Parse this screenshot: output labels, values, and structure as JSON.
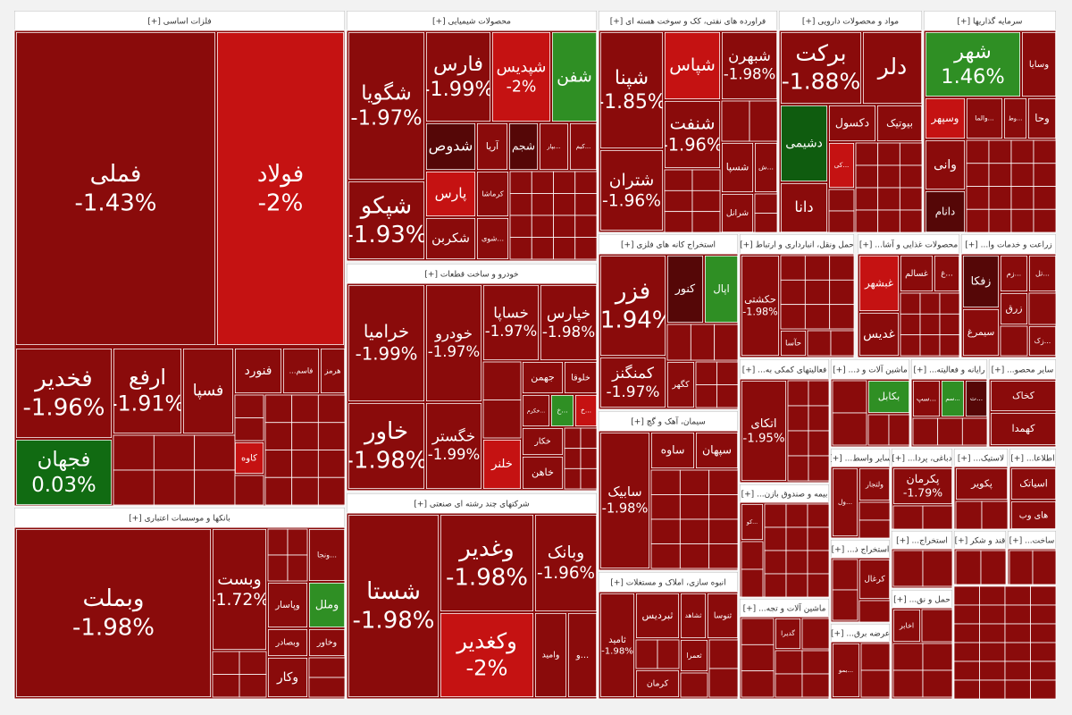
{
  "sectors": [
    {
      "title": "فلزات اساسی [+]",
      "tiles": [
        {
          "name": "فملی",
          "change": "-1.43%",
          "color": "#8a0b0b"
        },
        {
          "name": "فولاد",
          "change": "-2%",
          "color": "#c51212"
        },
        {
          "name": "فخدیر",
          "change": "-1.96%",
          "color": "#8a0b0b"
        },
        {
          "name": "فجهان",
          "change": "0.03%",
          "color": "#116b12"
        },
        {
          "name": "ارفع",
          "change": "-1.91%",
          "color": "#8a0b0b"
        },
        {
          "name": "فسپا",
          "color": "#8a0b0b"
        },
        {
          "name": "فنورد",
          "color": "#8a0b0b"
        },
        {
          "name": "فاسم...",
          "color": "#8a0b0b"
        },
        {
          "name": "هرمز",
          "color": "#8a0b0b"
        },
        {
          "name": "کاوه",
          "color": "#c51212"
        }
      ]
    },
    {
      "title": "بانکها و موسسات اعتباری [+]",
      "tiles": [
        {
          "name": "وبملت",
          "change": "-1.98%",
          "color": "#8a0b0b"
        },
        {
          "name": "وبست",
          "change": "-1.72%",
          "color": "#8a0b0b"
        },
        {
          "name": "...ونجا",
          "color": "#8a0b0b"
        },
        {
          "name": "وپاسار",
          "color": "#8a0b0b"
        },
        {
          "name": "وملل",
          "color": "#2f8f24"
        },
        {
          "name": "وبصادر",
          "color": "#8a0b0b"
        },
        {
          "name": "وخاور",
          "color": "#8a0b0b"
        },
        {
          "name": "وکار",
          "color": "#8a0b0b"
        }
      ]
    },
    {
      "title": "محصولات شیمیایی [+]",
      "tiles": [
        {
          "name": "شگویا",
          "change": "-1.97%",
          "color": "#8a0b0b"
        },
        {
          "name": "شپکو",
          "change": "-1.93%",
          "color": "#8a0b0b"
        },
        {
          "name": "فارس",
          "change": "-1.99%",
          "color": "#8a0b0b"
        },
        {
          "name": "شپدیس",
          "change": "-2%",
          "color": "#c51212"
        },
        {
          "name": "شفن",
          "color": "#2f8f24"
        },
        {
          "name": "شدوص",
          "color": "#550707"
        },
        {
          "name": "آریا",
          "color": "#8a0b0b"
        },
        {
          "name": "شجم",
          "color": "#550707"
        },
        {
          "name": "...بپار",
          "color": "#8a0b0b"
        },
        {
          "name": "...کیم",
          "color": "#8a0b0b"
        },
        {
          "name": "پارس",
          "color": "#c51212"
        },
        {
          "name": "کرماشا",
          "color": "#8a0b0b"
        },
        {
          "name": "شکربن",
          "color": "#8a0b0b"
        },
        {
          "name": "...شوی",
          "color": "#8a0b0b"
        }
      ]
    },
    {
      "title": "خودرو و ساخت قطعات [+]",
      "tiles": [
        {
          "name": "خرامیا",
          "change": "-1.99%",
          "color": "#8a0b0b"
        },
        {
          "name": "خاور",
          "change": "-1.98%",
          "color": "#8a0b0b"
        },
        {
          "name": "خودرو",
          "change": "-1.97%",
          "color": "#8a0b0b"
        },
        {
          "name": "خگستر",
          "change": "-1.99%",
          "color": "#8a0b0b"
        },
        {
          "name": "خساپا",
          "change": "-1.97%",
          "color": "#8a0b0b"
        },
        {
          "name": "خپارس",
          "change": "-1.98%",
          "color": "#8a0b0b"
        },
        {
          "name": "جهمن",
          "color": "#8a0b0b"
        },
        {
          "name": "خلوقا",
          "color": "#8a0b0b"
        },
        {
          "name": "...خکرم",
          "color": "#8a0b0b"
        },
        {
          "name": "...خ",
          "color": "#2f8f24"
        },
        {
          "name": "...خ",
          "color": "#c51212"
        },
        {
          "name": "خکار",
          "color": "#8a0b0b"
        },
        {
          "name": "خاهن",
          "color": "#8a0b0b"
        },
        {
          "name": "خلنر",
          "color": "#c51212"
        }
      ]
    },
    {
      "title": "شرکتهای چند رشته ای صنعتی [+]",
      "tiles": [
        {
          "name": "شستا",
          "change": "-1.98%",
          "color": "#8a0b0b"
        },
        {
          "name": "وغدیر",
          "change": "-1.98%",
          "color": "#8a0b0b"
        },
        {
          "name": "وبانک",
          "change": "-1.96%",
          "color": "#8a0b0b"
        },
        {
          "name": "وکغدیر",
          "change": "-2%",
          "color": "#c51212"
        },
        {
          "name": "وامید",
          "color": "#8a0b0b"
        },
        {
          "name": "...و",
          "color": "#8a0b0b"
        }
      ]
    },
    {
      "title": "فراورده های نفتی، کک و سوخت هسته ای [+]",
      "tiles": [
        {
          "name": "شپنا",
          "change": "-1.85%",
          "color": "#8a0b0b"
        },
        {
          "name": "شتران",
          "change": "-1.96%",
          "color": "#8a0b0b"
        },
        {
          "name": "شپاس",
          "color": "#c51212"
        },
        {
          "name": "شبهرن",
          "change": "-1.98%",
          "color": "#8a0b0b"
        },
        {
          "name": "شنفت",
          "change": "-1.96%",
          "color": "#8a0b0b"
        },
        {
          "name": "شسپا",
          "color": "#8a0b0b"
        },
        {
          "name": "...ش",
          "color": "#8a0b0b"
        },
        {
          "name": "شرانل",
          "color": "#8a0b0b"
        }
      ]
    },
    {
      "title": "مواد و محصولات دارویی [+]",
      "tiles": [
        {
          "name": "برکت",
          "change": "-1.88%",
          "color": "#8a0b0b"
        },
        {
          "name": "دلر",
          "color": "#8a0b0b"
        },
        {
          "name": "دشیمی",
          "color": "#0f5c0f"
        },
        {
          "name": "دکسول",
          "color": "#8a0b0b"
        },
        {
          "name": "بیوتیک",
          "color": "#8a0b0b"
        },
        {
          "name": "...کی",
          "color": "#c51212"
        },
        {
          "name": "دانا",
          "color": "#8a0b0b"
        }
      ]
    },
    {
      "title": "سرمایه گذاریها [+]",
      "tiles": [
        {
          "name": "شهر",
          "change": "1.46%",
          "color": "#2f8f24"
        },
        {
          "name": "وسایا",
          "color": "#8a0b0b"
        },
        {
          "name": "وسپهر",
          "color": "#c51212"
        },
        {
          "name": "...والما",
          "color": "#8a0b0b"
        },
        {
          "name": "...وط",
          "color": "#8a0b0b"
        },
        {
          "name": "وحا",
          "color": "#8a0b0b"
        },
        {
          "name": "وانی",
          "color": "#8a0b0b"
        },
        {
          "name": "دانام",
          "color": "#550707"
        }
      ]
    },
    {
      "title": "استخراج کانه های فلزی [+]",
      "tiles": [
        {
          "name": "فزر",
          "change": "-1.94%",
          "color": "#8a0b0b"
        },
        {
          "name": "کنور",
          "color": "#550707"
        },
        {
          "name": "اپال",
          "color": "#2f8f24"
        },
        {
          "name": "کمنگنز",
          "change": "-1.97%",
          "color": "#8a0b0b"
        },
        {
          "name": "کگهر",
          "color": "#8a0b0b"
        }
      ]
    },
    {
      "title": "سیمان، آهک و گچ [+]",
      "tiles": [
        {
          "name": "سابیک",
          "change": "-1.98%",
          "color": "#8a0b0b"
        },
        {
          "name": "ساوه",
          "color": "#8a0b0b"
        },
        {
          "name": "سپهان",
          "color": "#8a0b0b"
        }
      ]
    },
    {
      "title": "انبوه سازی، املاک و مستغلات [+]",
      "tiles": [
        {
          "name": "ثامید",
          "change": "-1.98%",
          "color": "#8a0b0b"
        },
        {
          "name": "ثبردیس",
          "color": "#8a0b0b"
        },
        {
          "name": "ثشاهد",
          "color": "#8a0b0b"
        },
        {
          "name": "ثنوسا",
          "color": "#8a0b0b"
        },
        {
          "name": "ثعمرا",
          "color": "#8a0b0b"
        },
        {
          "name": "کرمان",
          "color": "#8a0b0b"
        }
      ]
    },
    {
      "title": "حمل ونقل، انبارداری و ارتباط [+]",
      "tiles": [
        {
          "name": "حکشتی",
          "change": "-1.98%",
          "color": "#8a0b0b"
        },
        {
          "name": "حآسا",
          "color": "#8a0b0b"
        }
      ]
    },
    {
      "title": "محصولات غذایی و آشا... [+]",
      "tiles": [
        {
          "name": "غبشهر",
          "color": "#c51212"
        },
        {
          "name": "غسالم",
          "color": "#8a0b0b"
        },
        {
          "name": "...غ",
          "color": "#8a0b0b"
        },
        {
          "name": "غدیس",
          "color": "#8a0b0b"
        }
      ]
    },
    {
      "title": "زراعت و خدمات وا... [+]",
      "tiles": [
        {
          "name": "زفکا",
          "color": "#550707"
        },
        {
          "name": "...زم",
          "color": "#8a0b0b"
        },
        {
          "name": "...تل",
          "color": "#8a0b0b"
        },
        {
          "name": "زرق",
          "color": "#8a0b0b"
        },
        {
          "name": "سیمرغ",
          "color": "#8a0b0b"
        },
        {
          "name": "...زک",
          "color": "#8a0b0b"
        }
      ]
    },
    {
      "title": "فعالیتهای کمکی به... [+]",
      "tiles": [
        {
          "name": "اتکای",
          "change": "-1.95%",
          "color": "#8a0b0b"
        }
      ]
    },
    {
      "title": "ماشین آلات و د... [+]",
      "tiles": [
        {
          "name": "بکابل",
          "color": "#2f8f24"
        }
      ]
    },
    {
      "title": "رایانه و فعالیته... [+]",
      "tiles": [
        {
          "name": "...سپ",
          "color": "#8a0b0b"
        },
        {
          "name": "...سم",
          "color": "#2f8f24"
        },
        {
          "name": "...ت",
          "color": "#550707"
        }
      ]
    },
    {
      "title": "سایر محصو... [+]",
      "tiles": [
        {
          "name": "کخاک",
          "color": "#8a0b0b"
        },
        {
          "name": "کهمدا",
          "color": "#8a0b0b"
        }
      ]
    },
    {
      "title": "سایر واسط... [+]",
      "tiles": [
        {
          "name": "ولتجار",
          "color": "#8a0b0b"
        },
        {
          "name": "...ول",
          "color": "#8a0b0b"
        }
      ]
    },
    {
      "title": "دباغی، پردا... [+]",
      "tiles": [
        {
          "name": "پکرمان",
          "change": "-1.79%",
          "color": "#8a0b0b"
        }
      ]
    },
    {
      "title": "لاستیک... [+]",
      "tiles": [
        {
          "name": "پکویر",
          "color": "#8a0b0b"
        }
      ]
    },
    {
      "title": "اطلاعا... [+]",
      "tiles": [
        {
          "name": "اسیاتک",
          "color": "#8a0b0b"
        },
        {
          "name": "های وب",
          "color": "#8a0b0b"
        }
      ]
    },
    {
      "title": "بیمه و صندوق بازن... [+]",
      "tiles": [
        {
          "name": "...کو",
          "color": "#8a0b0b"
        }
      ]
    },
    {
      "title": "استخراج ذ... [+]",
      "tiles": [
        {
          "name": "کرغال",
          "color": "#8a0b0b"
        }
      ]
    },
    {
      "title": "استخراج... [+]",
      "tiles": []
    },
    {
      "title": "قند و شکر [+]",
      "tiles": []
    },
    {
      "title": "ساخت... [+]",
      "tiles": []
    },
    {
      "title": "ماشین آلات و تجه... [+]",
      "tiles": [
        {
          "name": "گدیرا",
          "color": "#8a0b0b"
        }
      ]
    },
    {
      "title": "عرضه برق... [+]",
      "tiles": [
        {
          "name": "...بمو",
          "color": "#8a0b0b"
        }
      ]
    },
    {
      "title": "حمل و نق... [+]",
      "tiles": [
        {
          "name": "اخابر",
          "color": "#8a0b0b"
        }
      ]
    }
  ]
}
